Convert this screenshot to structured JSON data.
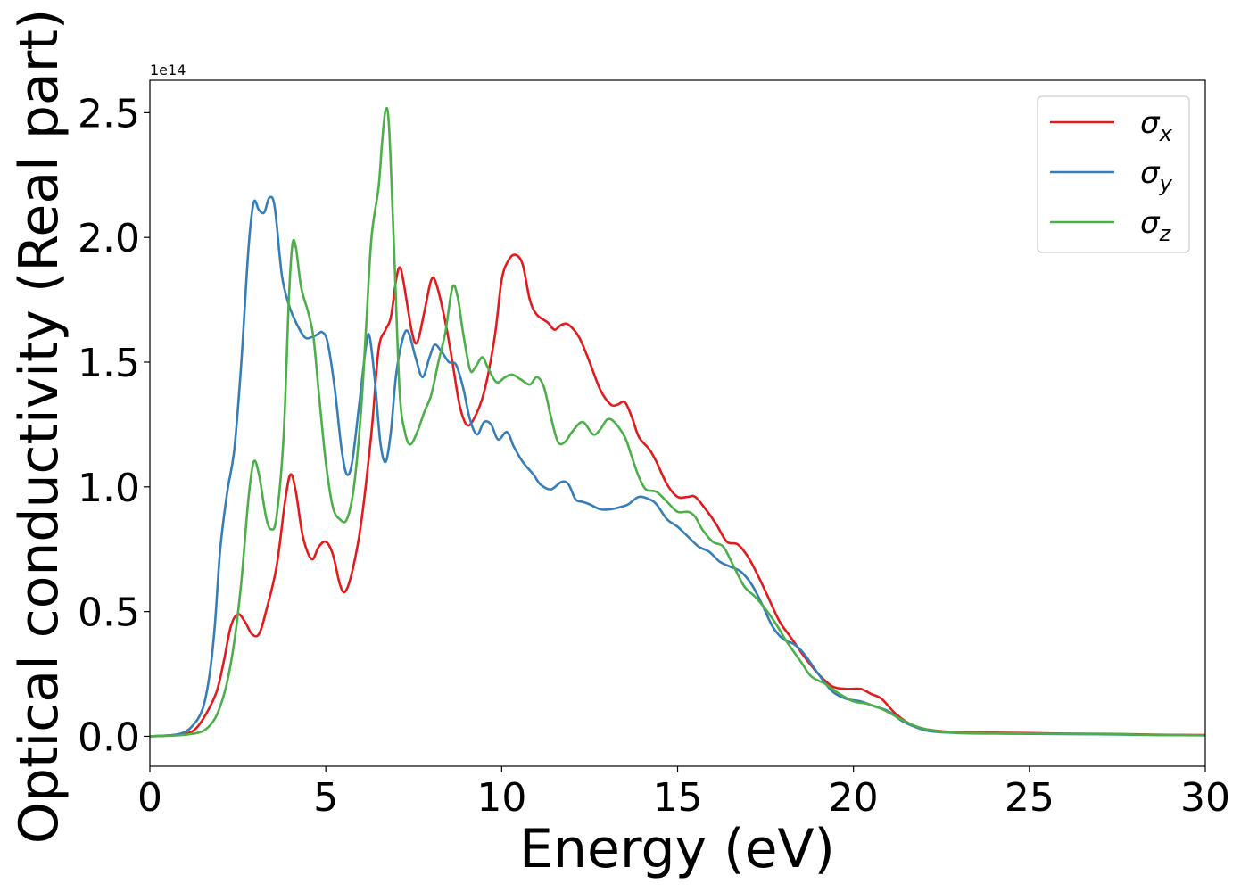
{
  "chart_data": {
    "type": "line",
    "xlabel": "Energy (eV)",
    "ylabel": "Optical conductivity (Real part)",
    "y_offset_label": "1e14",
    "xlim": [
      0,
      30
    ],
    "ylim": [
      -0.12,
      2.63
    ],
    "x_ticks": [
      0,
      5,
      10,
      15,
      20,
      25,
      30
    ],
    "x_tick_labels": [
      "0",
      "5",
      "10",
      "15",
      "20",
      "25",
      "30"
    ],
    "y_ticks": [
      0.0,
      0.5,
      1.0,
      1.5,
      2.0,
      2.5
    ],
    "y_tick_labels": [
      "0.0",
      "0.5",
      "1.0",
      "1.5",
      "2.0",
      "2.5"
    ],
    "grid": false,
    "legend_position": "top-right",
    "series": [
      {
        "name": "σ",
        "subscript": "x",
        "color": "#e41a1c",
        "points": [
          [
            0,
            0.0
          ],
          [
            0.5,
            0.003
          ],
          [
            1.0,
            0.01
          ],
          [
            1.3,
            0.03
          ],
          [
            1.6,
            0.09
          ],
          [
            1.9,
            0.18
          ],
          [
            2.1,
            0.3
          ],
          [
            2.3,
            0.44
          ],
          [
            2.5,
            0.49
          ],
          [
            2.7,
            0.46
          ],
          [
            2.9,
            0.41
          ],
          [
            3.1,
            0.41
          ],
          [
            3.3,
            0.5
          ],
          [
            3.6,
            0.68
          ],
          [
            3.85,
            0.95
          ],
          [
            4.0,
            1.05
          ],
          [
            4.15,
            0.98
          ],
          [
            4.35,
            0.8
          ],
          [
            4.6,
            0.71
          ],
          [
            4.8,
            0.76
          ],
          [
            5.0,
            0.78
          ],
          [
            5.2,
            0.73
          ],
          [
            5.4,
            0.61
          ],
          [
            5.55,
            0.58
          ],
          [
            5.75,
            0.66
          ],
          [
            6.0,
            0.85
          ],
          [
            6.3,
            1.22
          ],
          [
            6.5,
            1.55
          ],
          [
            6.7,
            1.63
          ],
          [
            6.85,
            1.68
          ],
          [
            7.0,
            1.83
          ],
          [
            7.1,
            1.88
          ],
          [
            7.2,
            1.83
          ],
          [
            7.45,
            1.62
          ],
          [
            7.6,
            1.58
          ],
          [
            7.8,
            1.7
          ],
          [
            8.0,
            1.83
          ],
          [
            8.15,
            1.81
          ],
          [
            8.4,
            1.66
          ],
          [
            8.6,
            1.5
          ],
          [
            8.8,
            1.33
          ],
          [
            9.0,
            1.25
          ],
          [
            9.2,
            1.27
          ],
          [
            9.5,
            1.38
          ],
          [
            9.8,
            1.6
          ],
          [
            10.0,
            1.83
          ],
          [
            10.2,
            1.91
          ],
          [
            10.4,
            1.93
          ],
          [
            10.6,
            1.89
          ],
          [
            10.8,
            1.75
          ],
          [
            11.0,
            1.69
          ],
          [
            11.3,
            1.66
          ],
          [
            11.5,
            1.63
          ],
          [
            11.7,
            1.65
          ],
          [
            11.9,
            1.65
          ],
          [
            12.2,
            1.6
          ],
          [
            12.5,
            1.5
          ],
          [
            12.8,
            1.39
          ],
          [
            13.1,
            1.33
          ],
          [
            13.3,
            1.33
          ],
          [
            13.5,
            1.34
          ],
          [
            13.7,
            1.28
          ],
          [
            13.9,
            1.2
          ],
          [
            14.2,
            1.15
          ],
          [
            14.4,
            1.1
          ],
          [
            14.7,
            1.01
          ],
          [
            15.0,
            0.96
          ],
          [
            15.3,
            0.96
          ],
          [
            15.5,
            0.96
          ],
          [
            15.8,
            0.91
          ],
          [
            16.1,
            0.85
          ],
          [
            16.4,
            0.78
          ],
          [
            16.7,
            0.77
          ],
          [
            17.0,
            0.72
          ],
          [
            17.3,
            0.64
          ],
          [
            17.6,
            0.55
          ],
          [
            17.9,
            0.46
          ],
          [
            18.2,
            0.4
          ],
          [
            18.6,
            0.32
          ],
          [
            19.0,
            0.25
          ],
          [
            19.4,
            0.2
          ],
          [
            19.8,
            0.19
          ],
          [
            20.2,
            0.19
          ],
          [
            20.5,
            0.17
          ],
          [
            20.8,
            0.15
          ],
          [
            21.2,
            0.09
          ],
          [
            21.6,
            0.05
          ],
          [
            22.0,
            0.03
          ],
          [
            22.5,
            0.02
          ],
          [
            23.0,
            0.016
          ],
          [
            24.0,
            0.015
          ],
          [
            25.0,
            0.013
          ],
          [
            26.0,
            0.011
          ],
          [
            27.0,
            0.01
          ],
          [
            28.0,
            0.008
          ],
          [
            29.0,
            0.006
          ],
          [
            30.0,
            0.005
          ]
        ]
      },
      {
        "name": "σ",
        "subscript": "y",
        "color": "#377eb8",
        "points": [
          [
            0,
            0.0
          ],
          [
            0.5,
            0.003
          ],
          [
            0.9,
            0.012
          ],
          [
            1.2,
            0.04
          ],
          [
            1.5,
            0.11
          ],
          [
            1.7,
            0.25
          ],
          [
            1.85,
            0.45
          ],
          [
            2.0,
            0.75
          ],
          [
            2.2,
            0.98
          ],
          [
            2.4,
            1.15
          ],
          [
            2.6,
            1.5
          ],
          [
            2.8,
            1.95
          ],
          [
            2.95,
            2.14
          ],
          [
            3.1,
            2.11
          ],
          [
            3.25,
            2.1
          ],
          [
            3.4,
            2.16
          ],
          [
            3.55,
            2.12
          ],
          [
            3.75,
            1.85
          ],
          [
            3.95,
            1.73
          ],
          [
            4.15,
            1.66
          ],
          [
            4.4,
            1.6
          ],
          [
            4.6,
            1.6
          ],
          [
            4.75,
            1.61
          ],
          [
            4.9,
            1.62
          ],
          [
            5.05,
            1.58
          ],
          [
            5.25,
            1.4
          ],
          [
            5.45,
            1.15
          ],
          [
            5.6,
            1.05
          ],
          [
            5.75,
            1.1
          ],
          [
            5.95,
            1.33
          ],
          [
            6.15,
            1.57
          ],
          [
            6.25,
            1.6
          ],
          [
            6.4,
            1.42
          ],
          [
            6.55,
            1.18
          ],
          [
            6.7,
            1.1
          ],
          [
            6.85,
            1.22
          ],
          [
            7.0,
            1.45
          ],
          [
            7.2,
            1.6
          ],
          [
            7.35,
            1.62
          ],
          [
            7.55,
            1.52
          ],
          [
            7.75,
            1.44
          ],
          [
            7.95,
            1.52
          ],
          [
            8.1,
            1.57
          ],
          [
            8.3,
            1.54
          ],
          [
            8.5,
            1.5
          ],
          [
            8.7,
            1.49
          ],
          [
            8.9,
            1.4
          ],
          [
            9.1,
            1.27
          ],
          [
            9.3,
            1.21
          ],
          [
            9.5,
            1.26
          ],
          [
            9.7,
            1.25
          ],
          [
            9.9,
            1.19
          ],
          [
            10.15,
            1.22
          ],
          [
            10.35,
            1.16
          ],
          [
            10.6,
            1.1
          ],
          [
            10.9,
            1.05
          ],
          [
            11.1,
            1.01
          ],
          [
            11.4,
            0.99
          ],
          [
            11.7,
            1.02
          ],
          [
            11.9,
            1.01
          ],
          [
            12.1,
            0.95
          ],
          [
            12.3,
            0.94
          ],
          [
            12.5,
            0.93
          ],
          [
            12.8,
            0.91
          ],
          [
            13.1,
            0.91
          ],
          [
            13.4,
            0.92
          ],
          [
            13.6,
            0.93
          ],
          [
            13.9,
            0.96
          ],
          [
            14.2,
            0.95
          ],
          [
            14.4,
            0.93
          ],
          [
            14.7,
            0.87
          ],
          [
            15.0,
            0.84
          ],
          [
            15.3,
            0.8
          ],
          [
            15.6,
            0.76
          ],
          [
            15.9,
            0.74
          ],
          [
            16.2,
            0.7
          ],
          [
            16.5,
            0.68
          ],
          [
            16.8,
            0.66
          ],
          [
            17.1,
            0.61
          ],
          [
            17.4,
            0.53
          ],
          [
            17.7,
            0.44
          ],
          [
            18.0,
            0.39
          ],
          [
            18.3,
            0.37
          ],
          [
            18.6,
            0.33
          ],
          [
            19.0,
            0.25
          ],
          [
            19.4,
            0.18
          ],
          [
            19.8,
            0.15
          ],
          [
            20.2,
            0.14
          ],
          [
            20.6,
            0.12
          ],
          [
            21.0,
            0.1
          ],
          [
            21.4,
            0.06
          ],
          [
            21.8,
            0.035
          ],
          [
            22.2,
            0.02
          ],
          [
            23.0,
            0.013
          ],
          [
            24.0,
            0.011
          ],
          [
            25.0,
            0.01
          ],
          [
            26.0,
            0.009
          ],
          [
            27.0,
            0.008
          ],
          [
            28.0,
            0.006
          ],
          [
            29.0,
            0.005
          ],
          [
            30.0,
            0.004
          ]
        ]
      },
      {
        "name": "σ",
        "subscript": "z",
        "color": "#4daf4a",
        "points": [
          [
            0,
            0.0
          ],
          [
            0.5,
            0.002
          ],
          [
            1.0,
            0.006
          ],
          [
            1.5,
            0.02
          ],
          [
            1.8,
            0.06
          ],
          [
            2.0,
            0.12
          ],
          [
            2.2,
            0.22
          ],
          [
            2.4,
            0.38
          ],
          [
            2.6,
            0.62
          ],
          [
            2.8,
            0.95
          ],
          [
            2.95,
            1.1
          ],
          [
            3.1,
            1.05
          ],
          [
            3.3,
            0.88
          ],
          [
            3.45,
            0.83
          ],
          [
            3.6,
            0.88
          ],
          [
            3.8,
            1.2
          ],
          [
            3.95,
            1.75
          ],
          [
            4.05,
            1.97
          ],
          [
            4.15,
            1.96
          ],
          [
            4.3,
            1.8
          ],
          [
            4.5,
            1.7
          ],
          [
            4.65,
            1.6
          ],
          [
            4.8,
            1.38
          ],
          [
            5.0,
            1.1
          ],
          [
            5.2,
            0.92
          ],
          [
            5.4,
            0.87
          ],
          [
            5.6,
            0.87
          ],
          [
            5.8,
            1.0
          ],
          [
            6.0,
            1.3
          ],
          [
            6.15,
            1.65
          ],
          [
            6.3,
            2.0
          ],
          [
            6.5,
            2.2
          ],
          [
            6.6,
            2.38
          ],
          [
            6.7,
            2.51
          ],
          [
            6.8,
            2.44
          ],
          [
            6.95,
            1.92
          ],
          [
            7.1,
            1.38
          ],
          [
            7.25,
            1.22
          ],
          [
            7.4,
            1.17
          ],
          [
            7.6,
            1.22
          ],
          [
            7.8,
            1.3
          ],
          [
            8.0,
            1.37
          ],
          [
            8.2,
            1.5
          ],
          [
            8.4,
            1.62
          ],
          [
            8.6,
            1.8
          ],
          [
            8.75,
            1.76
          ],
          [
            8.9,
            1.62
          ],
          [
            9.1,
            1.47
          ],
          [
            9.25,
            1.48
          ],
          [
            9.45,
            1.52
          ],
          [
            9.6,
            1.48
          ],
          [
            9.85,
            1.42
          ],
          [
            10.1,
            1.44
          ],
          [
            10.3,
            1.45
          ],
          [
            10.55,
            1.43
          ],
          [
            10.8,
            1.41
          ],
          [
            11.0,
            1.44
          ],
          [
            11.2,
            1.4
          ],
          [
            11.4,
            1.28
          ],
          [
            11.6,
            1.18
          ],
          [
            11.8,
            1.18
          ],
          [
            12.0,
            1.22
          ],
          [
            12.3,
            1.26
          ],
          [
            12.6,
            1.21
          ],
          [
            12.8,
            1.23
          ],
          [
            13.0,
            1.27
          ],
          [
            13.2,
            1.26
          ],
          [
            13.5,
            1.2
          ],
          [
            13.7,
            1.12
          ],
          [
            13.9,
            1.04
          ],
          [
            14.1,
            0.99
          ],
          [
            14.4,
            0.98
          ],
          [
            14.7,
            0.94
          ],
          [
            15.0,
            0.9
          ],
          [
            15.3,
            0.9
          ],
          [
            15.5,
            0.88
          ],
          [
            15.7,
            0.83
          ],
          [
            16.0,
            0.78
          ],
          [
            16.3,
            0.76
          ],
          [
            16.6,
            0.68
          ],
          [
            16.9,
            0.6
          ],
          [
            17.2,
            0.56
          ],
          [
            17.5,
            0.51
          ],
          [
            17.8,
            0.45
          ],
          [
            18.1,
            0.38
          ],
          [
            18.5,
            0.3
          ],
          [
            18.8,
            0.24
          ],
          [
            19.2,
            0.21
          ],
          [
            19.6,
            0.17
          ],
          [
            20.0,
            0.14
          ],
          [
            20.4,
            0.13
          ],
          [
            20.8,
            0.11
          ],
          [
            21.2,
            0.08
          ],
          [
            21.6,
            0.05
          ],
          [
            22.0,
            0.03
          ],
          [
            22.5,
            0.018
          ],
          [
            23.0,
            0.014
          ],
          [
            24.0,
            0.013
          ],
          [
            25.0,
            0.011
          ],
          [
            26.0,
            0.01
          ],
          [
            27.0,
            0.009
          ],
          [
            28.0,
            0.007
          ],
          [
            29.0,
            0.005
          ],
          [
            30.0,
            0.004
          ]
        ]
      }
    ]
  }
}
